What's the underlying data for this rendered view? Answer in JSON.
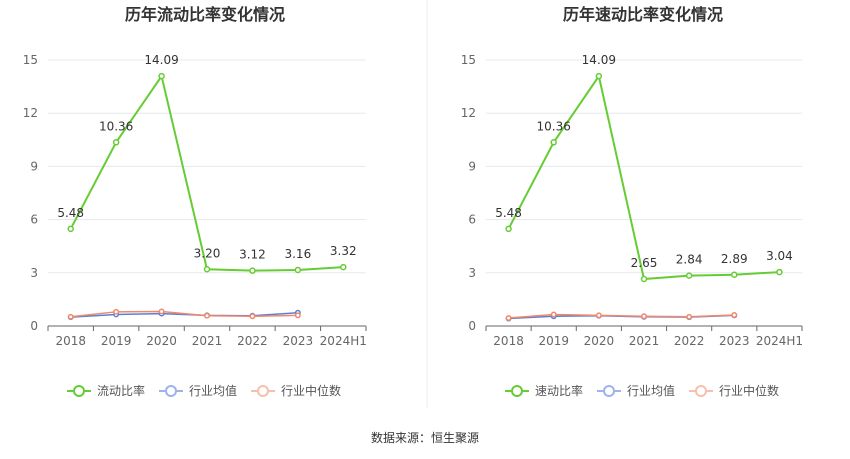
{
  "source_label": "数据来源：恒生聚源",
  "colors": {
    "main": "#66CC33",
    "avg": "#5B7FD6",
    "median": "#F0886A",
    "avg_legend": "#9DB3EC",
    "median_legend": "#F7BFAE",
    "grid": "#E6E8EE",
    "axis": "#666666",
    "divider": "#EEEEEE"
  },
  "chart_data": [
    {
      "type": "line",
      "title": "历年流动比率变化情况",
      "categories": [
        "2018",
        "2019",
        "2020",
        "2021",
        "2022",
        "2023",
        "2024H1"
      ],
      "yticks": [
        "0",
        "3",
        "6",
        "9",
        "12",
        "15"
      ],
      "ylim": [
        0,
        15
      ],
      "grid": true,
      "legend_position": "bottom",
      "series": [
        {
          "name": "流动比率",
          "values": [
            5.48,
            10.36,
            14.09,
            3.2,
            3.12,
            3.16,
            3.32
          ],
          "labels": [
            "5.48",
            "10.36",
            "14.09",
            "3.20",
            "3.12",
            "3.16",
            "3.32"
          ]
        },
        {
          "name": "行业均值",
          "values": [
            0.5,
            0.65,
            0.7,
            0.6,
            0.58,
            0.75,
            null
          ]
        },
        {
          "name": "行业中位数",
          "values": [
            0.52,
            0.8,
            0.82,
            0.58,
            0.55,
            0.6,
            null
          ]
        }
      ]
    },
    {
      "type": "line",
      "title": "历年速动比率变化情况",
      "categories": [
        "2018",
        "2019",
        "2020",
        "2021",
        "2022",
        "2023",
        "2024H1"
      ],
      "yticks": [
        "0",
        "3",
        "6",
        "9",
        "12",
        "15"
      ],
      "ylim": [
        0,
        15
      ],
      "grid": true,
      "legend_position": "bottom",
      "series": [
        {
          "name": "速动比率",
          "values": [
            5.48,
            10.36,
            14.09,
            2.65,
            2.84,
            2.89,
            3.04
          ],
          "labels": [
            "5.48",
            "10.36",
            "14.09",
            "2.65",
            "2.84",
            "2.89",
            "3.04"
          ]
        },
        {
          "name": "行业均值",
          "values": [
            0.42,
            0.55,
            0.58,
            0.52,
            0.5,
            0.6,
            null
          ]
        },
        {
          "name": "行业中位数",
          "values": [
            0.45,
            0.65,
            0.6,
            0.55,
            0.52,
            0.62,
            null
          ]
        }
      ]
    }
  ]
}
